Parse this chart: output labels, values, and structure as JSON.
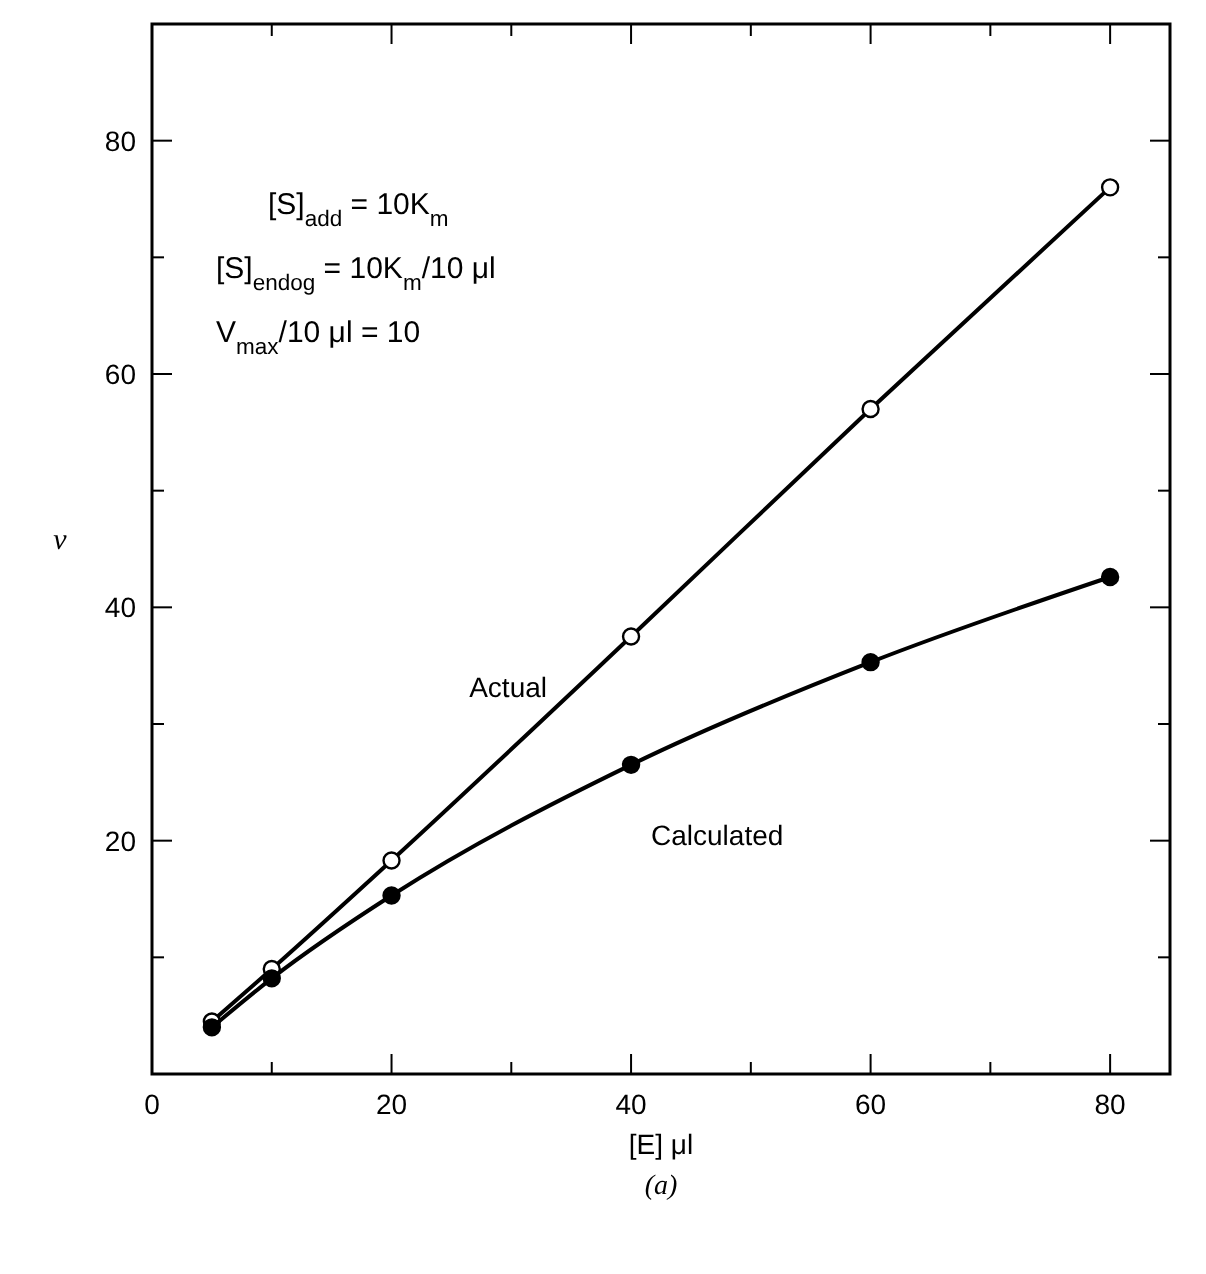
{
  "chart_data": {
    "type": "line",
    "xlabel": "[E] μl",
    "ylabel": "v",
    "x": [
      5,
      10,
      20,
      40,
      60,
      80
    ],
    "series": [
      {
        "name": "Actual",
        "color": "#000000",
        "values": [
          4.5,
          9,
          18.3,
          37.5,
          57,
          76
        ]
      },
      {
        "name": "Calculated",
        "color": "#000000",
        "values": [
          4,
          8.2,
          15.3,
          26.5,
          35.3,
          42.6
        ]
      }
    ],
    "xlim": [
      0,
      85
    ],
    "xticks": [
      0,
      {
        "value": 10,
        "label": null
      },
      20,
      {
        "value": 30,
        "label": null
      },
      40,
      {
        "value": 50,
        "label": null
      },
      60,
      {
        "value": 70,
        "label": null
      },
      80
    ],
    "ylim": [
      0,
      90
    ],
    "yticks": [
      {
        "value": 0,
        "label": null
      },
      {
        "value": 10,
        "label": null
      },
      20,
      {
        "value": 30,
        "label": null
      },
      40,
      {
        "value": 50,
        "label": null
      },
      60,
      {
        "value": 70,
        "label": null
      },
      80
    ],
    "marker": "circle",
    "line_style": "solid",
    "grid": false,
    "annotations": [
      "[S]$_{add}$ = 10K$_{m}$",
      "[S]$_{endog}$ = 10K$_{m}$/10 μl",
      "V$_{max}$/10 μl = 10",
      "(a)"
    ]
  }
}
